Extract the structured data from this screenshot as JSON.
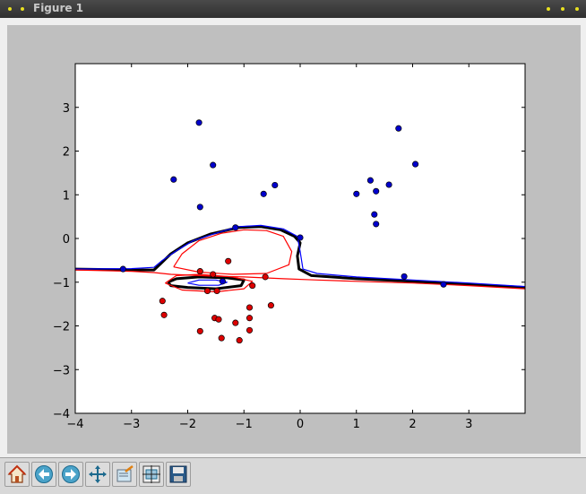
{
  "window": {
    "title": "Figure 1"
  },
  "toolbar": {
    "buttons": [
      {
        "name": "home-button",
        "icon": "home-icon"
      },
      {
        "name": "back-button",
        "icon": "back-arrow-icon"
      },
      {
        "name": "forward-button",
        "icon": "forward-arrow-icon"
      },
      {
        "name": "pan-button",
        "icon": "move-icon"
      },
      {
        "name": "zoom-button",
        "icon": "zoom-rect-icon"
      },
      {
        "name": "subplots-button",
        "icon": "subplots-icon"
      },
      {
        "name": "save-button",
        "icon": "save-icon"
      }
    ]
  },
  "chart_data": {
    "type": "scatter",
    "xlim": [
      -4,
      4
    ],
    "ylim": [
      -4,
      4
    ],
    "x_ticks": [
      "−4",
      "−3",
      "−2",
      "−1",
      "0",
      "1",
      "2",
      "3"
    ],
    "y_ticks": [
      "−4",
      "−3",
      "−2",
      "−1",
      "0",
      "1",
      "2",
      "3"
    ],
    "x_tick_values": [
      -4,
      -3,
      -2,
      -1,
      0,
      1,
      2,
      3
    ],
    "y_tick_values": [
      -4,
      -3,
      -2,
      -1,
      0,
      1,
      2,
      3
    ],
    "grid": false,
    "colors": {
      "blue": "#0000cc",
      "red": "#dd0000",
      "boundary": "#000000",
      "margin_blue": "#0000ff",
      "margin_red": "#ff0000"
    },
    "series": [
      {
        "color": "blue",
        "points": [
          [
            -1.8,
            2.65
          ],
          [
            -2.25,
            1.35
          ],
          [
            -1.55,
            1.68
          ],
          [
            -1.78,
            0.72
          ],
          [
            -0.65,
            1.02
          ],
          [
            -0.45,
            1.22
          ],
          [
            -1.15,
            0.25
          ],
          [
            0.0,
            0.02
          ],
          [
            1.0,
            1.02
          ],
          [
            1.25,
            1.33
          ],
          [
            1.35,
            1.08
          ],
          [
            1.58,
            1.23
          ],
          [
            1.75,
            2.52
          ],
          [
            2.05,
            1.7
          ],
          [
            1.32,
            0.55
          ],
          [
            1.35,
            0.33
          ],
          [
            1.85,
            -0.87
          ],
          [
            2.55,
            -1.05
          ],
          [
            -3.15,
            -0.7
          ],
          [
            -1.38,
            -0.98
          ]
        ]
      },
      {
        "color": "red",
        "points": [
          [
            -1.78,
            -0.75
          ],
          [
            -1.28,
            -0.52
          ],
          [
            -1.55,
            -0.82
          ],
          [
            -1.65,
            -1.2
          ],
          [
            -1.48,
            -1.2
          ],
          [
            -0.85,
            -1.08
          ],
          [
            -0.62,
            -0.88
          ],
          [
            -0.52,
            -1.53
          ],
          [
            -2.45,
            -1.43
          ],
          [
            -2.42,
            -1.75
          ],
          [
            -1.52,
            -1.82
          ],
          [
            -1.45,
            -1.85
          ],
          [
            -0.9,
            -1.58
          ],
          [
            -0.9,
            -1.82
          ],
          [
            -1.15,
            -1.93
          ],
          [
            -1.78,
            -2.12
          ],
          [
            -0.9,
            -2.1
          ],
          [
            -1.4,
            -2.28
          ],
          [
            -1.08,
            -2.33
          ]
        ]
      }
    ],
    "contours": [
      {
        "role": "decision-boundary",
        "color": "boundary",
        "paths": [
          [
            [
              -4,
              -0.7
            ],
            [
              -3.0,
              -0.72
            ],
            [
              -2.6,
              -0.72
            ],
            [
              -2.5,
              -0.6
            ],
            [
              -2.3,
              -0.35
            ],
            [
              -2.0,
              -0.1
            ],
            [
              -1.6,
              0.1
            ],
            [
              -1.1,
              0.25
            ],
            [
              -0.7,
              0.27
            ],
            [
              -0.35,
              0.2
            ],
            [
              -0.1,
              0.05
            ],
            [
              0.0,
              -0.1
            ],
            [
              -0.05,
              -0.4
            ],
            [
              -0.02,
              -0.7
            ],
            [
              0.2,
              -0.85
            ],
            [
              1.0,
              -0.92
            ],
            [
              2.0,
              -0.98
            ],
            [
              3.0,
              -1.05
            ],
            [
              4.0,
              -1.12
            ]
          ],
          [
            [
              -2.35,
              -1.0
            ],
            [
              -2.2,
              -0.92
            ],
            [
              -1.8,
              -0.88
            ],
            [
              -1.3,
              -0.9
            ],
            [
              -1.0,
              -0.95
            ],
            [
              -1.05,
              -1.08
            ],
            [
              -1.5,
              -1.15
            ],
            [
              -2.0,
              -1.12
            ],
            [
              -2.3,
              -1.08
            ],
            [
              -2.35,
              -1.0
            ]
          ]
        ]
      },
      {
        "role": "margin-blue",
        "color": "margin_blue",
        "paths": [
          [
            [
              -4,
              -0.7
            ],
            [
              -3.0,
              -0.69
            ],
            [
              -2.6,
              -0.66
            ],
            [
              -2.45,
              -0.5
            ],
            [
              -2.2,
              -0.28
            ],
            [
              -1.9,
              -0.05
            ],
            [
              -1.5,
              0.12
            ],
            [
              -1.1,
              0.27
            ],
            [
              -0.7,
              0.3
            ],
            [
              -0.3,
              0.22
            ],
            [
              -0.05,
              0.05
            ],
            [
              0.0,
              -0.3
            ],
            [
              0.05,
              -0.7
            ],
            [
              0.3,
              -0.8
            ],
            [
              1.0,
              -0.88
            ],
            [
              2.0,
              -0.95
            ],
            [
              3.0,
              -1.02
            ],
            [
              4.0,
              -1.1
            ]
          ],
          [
            [
              -2.0,
              -1.02
            ],
            [
              -1.8,
              -0.95
            ],
            [
              -1.5,
              -0.95
            ],
            [
              -1.3,
              -1.0
            ],
            [
              -1.45,
              -1.07
            ],
            [
              -1.8,
              -1.07
            ],
            [
              -2.0,
              -1.02
            ]
          ]
        ]
      },
      {
        "role": "margin-red",
        "color": "margin_red",
        "paths": [
          [
            [
              -4,
              -0.72
            ],
            [
              -3.0,
              -0.75
            ],
            [
              -2.6,
              -0.78
            ],
            [
              -2.3,
              -0.82
            ],
            [
              -1.6,
              -0.86
            ],
            [
              -1.0,
              -0.88
            ],
            [
              -0.3,
              -0.92
            ],
            [
              0.3,
              -0.95
            ],
            [
              1.0,
              -0.98
            ],
            [
              2.0,
              -1.02
            ],
            [
              3.0,
              -1.08
            ],
            [
              4.0,
              -1.15
            ]
          ],
          [
            [
              -2.25,
              -0.65
            ],
            [
              -2.1,
              -0.35
            ],
            [
              -1.8,
              -0.05
            ],
            [
              -1.4,
              0.12
            ],
            [
              -1.0,
              0.2
            ],
            [
              -0.6,
              0.18
            ],
            [
              -0.3,
              0.05
            ],
            [
              -0.15,
              -0.3
            ],
            [
              -0.2,
              -0.6
            ],
            [
              -0.6,
              -0.8
            ],
            [
              -1.2,
              -0.82
            ],
            [
              -1.8,
              -0.77
            ],
            [
              -2.25,
              -0.65
            ]
          ],
          [
            [
              -2.4,
              -1.02
            ],
            [
              -2.2,
              -0.85
            ],
            [
              -1.8,
              -0.82
            ],
            [
              -1.2,
              -0.88
            ],
            [
              -0.85,
              -0.98
            ],
            [
              -1.0,
              -1.15
            ],
            [
              -1.5,
              -1.22
            ],
            [
              -2.1,
              -1.18
            ],
            [
              -2.4,
              -1.02
            ]
          ]
        ]
      }
    ]
  }
}
